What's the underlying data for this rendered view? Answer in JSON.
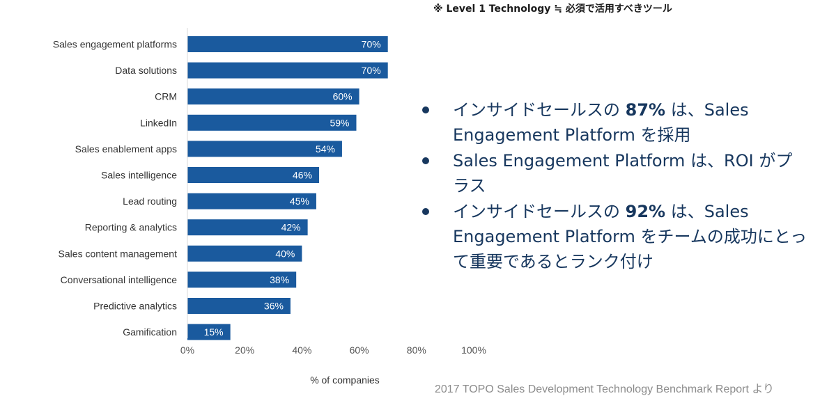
{
  "top_note": "※ Level 1 Technology ≒ 必須で活用すべきツール",
  "bullets": [
    {
      "pre": "インサイドセールスの ",
      "bold": "87%",
      "post": " は、Sales Engagement Platform を採用"
    },
    {
      "pre": "Sales Engagement Platform は、ROI がプラス",
      "bold": "",
      "post": ""
    },
    {
      "pre": "インサイドセールスの ",
      "bold": "92%",
      "post": " は、Sales Engagement Platform をチームの成功にとって重要であるとランク付け"
    }
  ],
  "source": "2017 TOPO Sales Development Technology Benchmark Report より",
  "chart_data": {
    "type": "bar",
    "orientation": "horizontal",
    "categories": [
      "Sales engagement platforms",
      "Data solutions",
      "CRM",
      "LinkedIn",
      "Sales enablement apps",
      "Sales intelligence",
      "Lead routing",
      "Reporting & analytics",
      "Sales content management",
      "Conversational intelligence",
      "Predictive analytics",
      "Gamification"
    ],
    "values": [
      70,
      70,
      60,
      59,
      54,
      46,
      45,
      42,
      40,
      38,
      36,
      15
    ],
    "value_labels": [
      "70%",
      "70%",
      "60%",
      "59%",
      "54%",
      "46%",
      "45%",
      "42%",
      "40%",
      "38%",
      "36%",
      "15%"
    ],
    "xlim": [
      0,
      100
    ],
    "xticks": [
      0,
      20,
      40,
      60,
      80,
      100
    ],
    "xtick_labels": [
      "0%",
      "20%",
      "40%",
      "60%",
      "80%",
      "100%"
    ],
    "xlabel": "% of companies",
    "bar_color": "#1a5a9e",
    "grid": false
  }
}
